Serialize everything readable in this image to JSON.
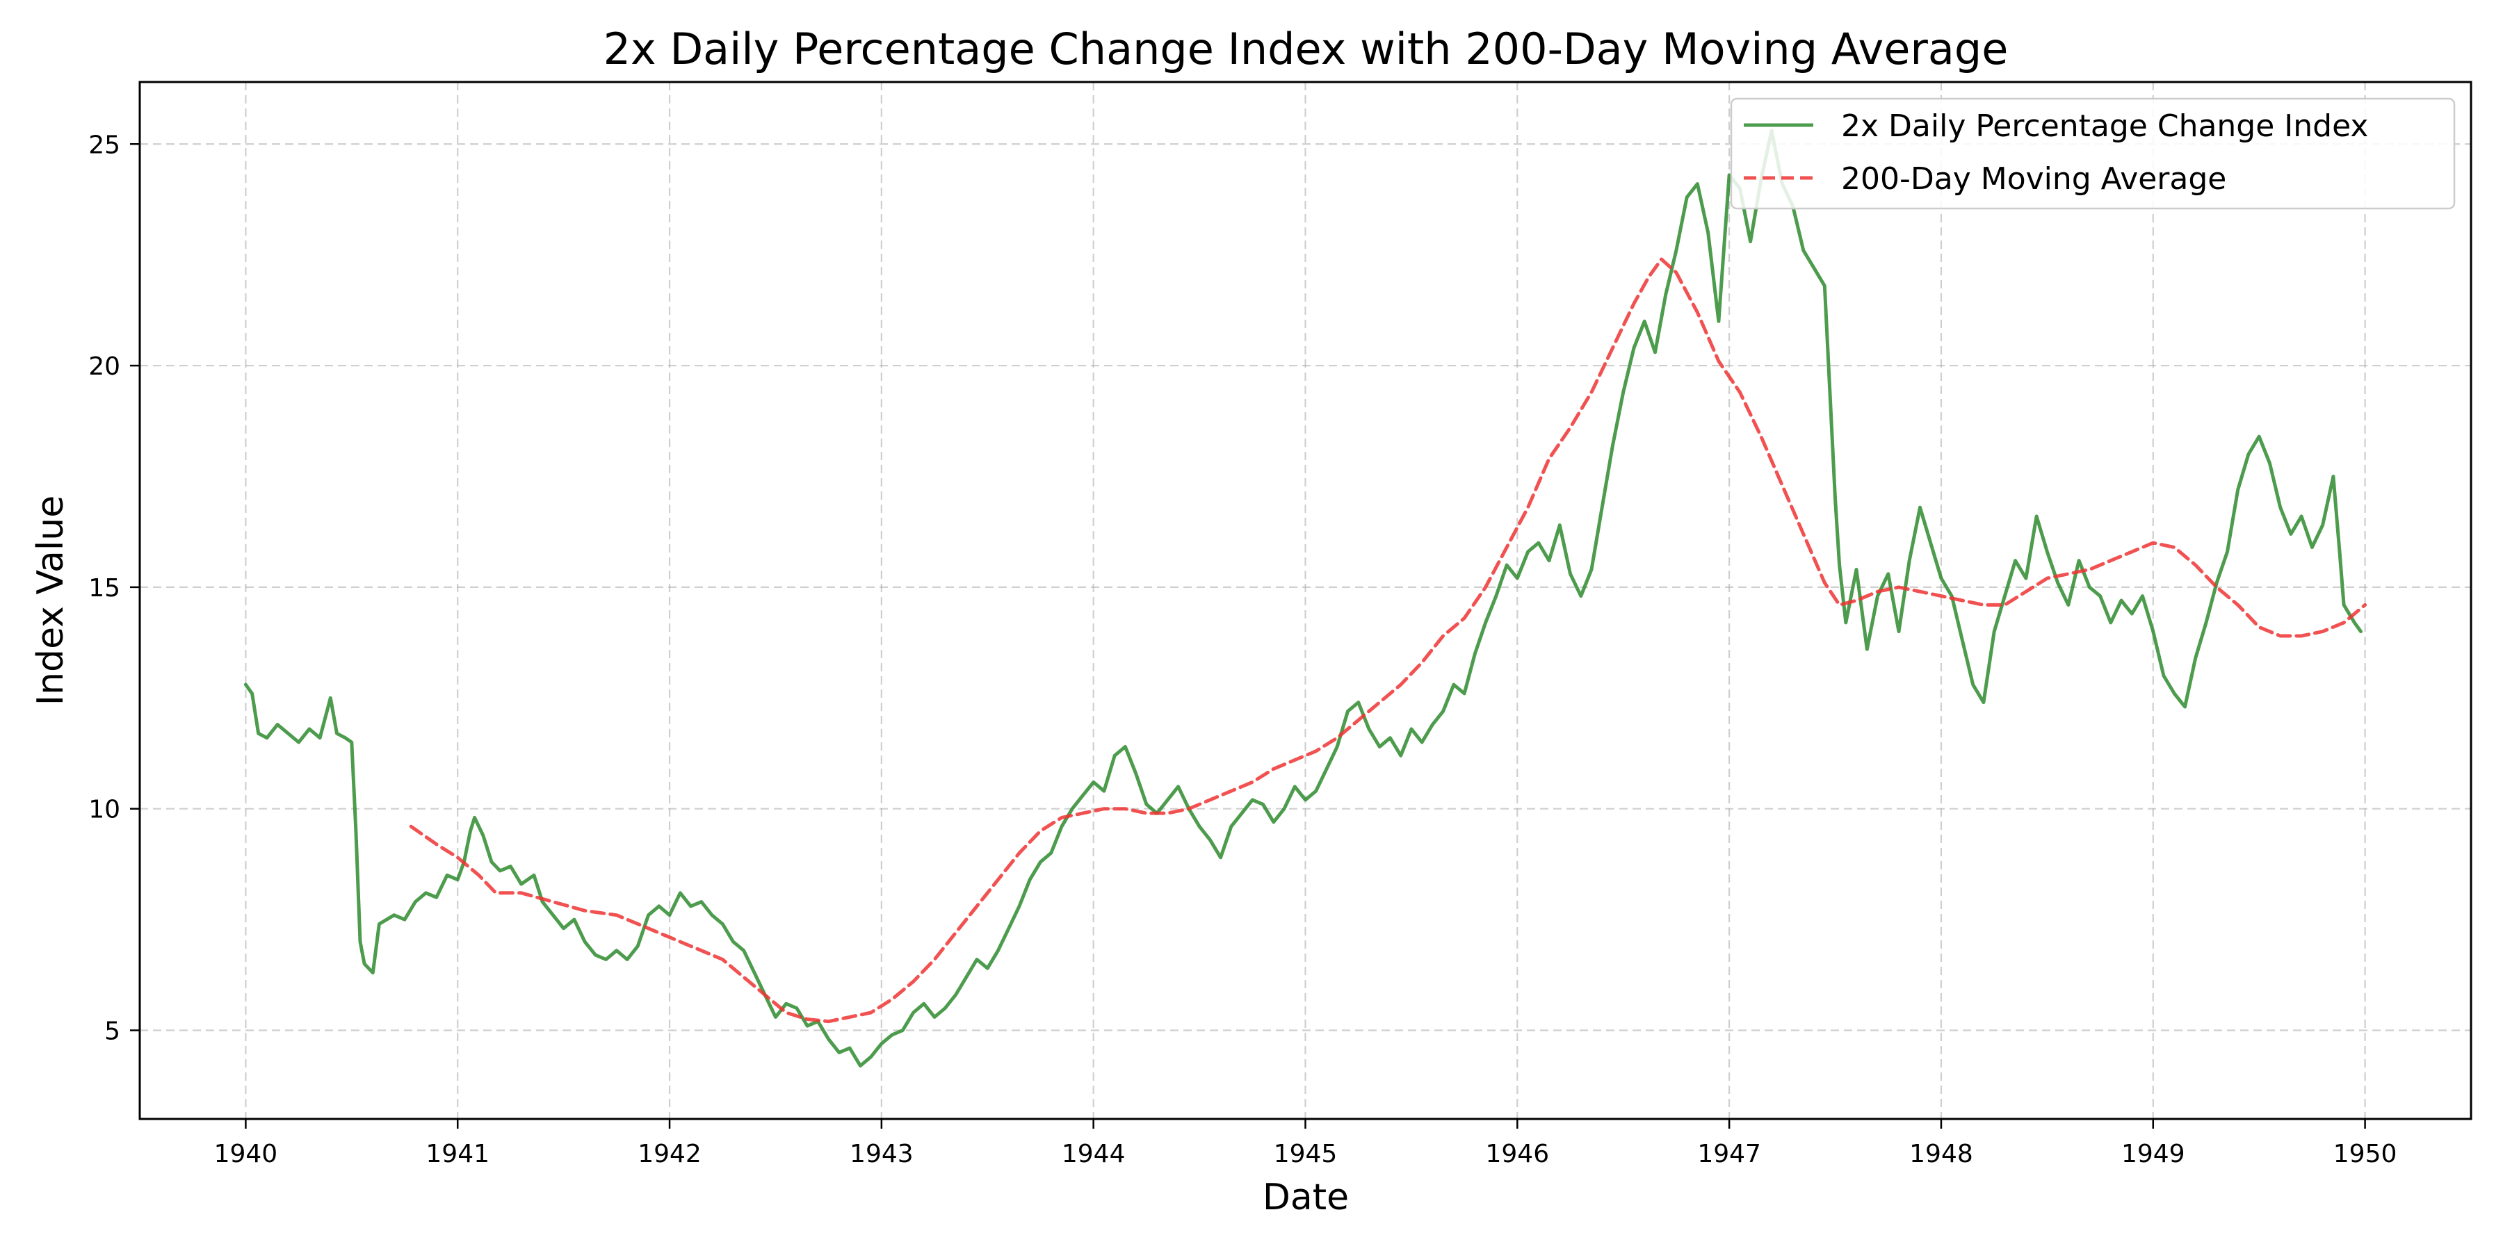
{
  "chart_data": {
    "type": "line",
    "title": "2x Daily Percentage Change Index with 200-Day Moving Average",
    "xlabel": "Date",
    "ylabel": "Index Value",
    "xlim": [
      1939.5,
      1950.5
    ],
    "ylim": [
      3,
      26.4
    ],
    "x_ticks": [
      1940,
      1941,
      1942,
      1943,
      1944,
      1945,
      1946,
      1947,
      1948,
      1949,
      1950
    ],
    "x_tick_labels": [
      "1940",
      "1941",
      "1942",
      "1943",
      "1944",
      "1945",
      "1946",
      "1947",
      "1948",
      "1949",
      "1950"
    ],
    "y_ticks": [
      5,
      10,
      15,
      20,
      25
    ],
    "y_tick_labels": [
      "5",
      "10",
      "15",
      "20",
      "25"
    ],
    "grid": true,
    "legend_position": "top-right",
    "series": [
      {
        "name": "2x Daily Percentage Change Index",
        "color": "#2e8b2e",
        "style": "solid",
        "points": [
          [
            1940.0,
            12.8
          ],
          [
            1940.03,
            12.6
          ],
          [
            1940.06,
            11.7
          ],
          [
            1940.1,
            11.6
          ],
          [
            1940.15,
            11.9
          ],
          [
            1940.2,
            11.7
          ],
          [
            1940.25,
            11.5
          ],
          [
            1940.3,
            11.8
          ],
          [
            1940.35,
            11.6
          ],
          [
            1940.4,
            12.5
          ],
          [
            1940.43,
            11.7
          ],
          [
            1940.47,
            11.6
          ],
          [
            1940.5,
            11.5
          ],
          [
            1940.52,
            9.5
          ],
          [
            1940.54,
            7.0
          ],
          [
            1940.56,
            6.5
          ],
          [
            1940.6,
            6.3
          ],
          [
            1940.63,
            7.4
          ],
          [
            1940.7,
            7.6
          ],
          [
            1940.75,
            7.5
          ],
          [
            1940.8,
            7.9
          ],
          [
            1940.85,
            8.1
          ],
          [
            1940.9,
            8.0
          ],
          [
            1940.95,
            8.5
          ],
          [
            1941.0,
            8.4
          ],
          [
            1941.03,
            8.8
          ],
          [
            1941.06,
            9.5
          ],
          [
            1941.08,
            9.8
          ],
          [
            1941.12,
            9.4
          ],
          [
            1941.16,
            8.8
          ],
          [
            1941.2,
            8.6
          ],
          [
            1941.25,
            8.7
          ],
          [
            1941.3,
            8.3
          ],
          [
            1941.36,
            8.5
          ],
          [
            1941.4,
            7.9
          ],
          [
            1941.45,
            7.6
          ],
          [
            1941.5,
            7.3
          ],
          [
            1941.55,
            7.5
          ],
          [
            1941.6,
            7.0
          ],
          [
            1941.65,
            6.7
          ],
          [
            1941.7,
            6.6
          ],
          [
            1941.75,
            6.8
          ],
          [
            1941.8,
            6.6
          ],
          [
            1941.85,
            6.9
          ],
          [
            1941.9,
            7.6
          ],
          [
            1941.95,
            7.8
          ],
          [
            1942.0,
            7.6
          ],
          [
            1942.05,
            8.1
          ],
          [
            1942.1,
            7.8
          ],
          [
            1942.15,
            7.9
          ],
          [
            1942.2,
            7.6
          ],
          [
            1942.25,
            7.4
          ],
          [
            1942.3,
            7.0
          ],
          [
            1942.35,
            6.8
          ],
          [
            1942.4,
            6.3
          ],
          [
            1942.45,
            5.8
          ],
          [
            1942.5,
            5.3
          ],
          [
            1942.55,
            5.6
          ],
          [
            1942.6,
            5.5
          ],
          [
            1942.65,
            5.1
          ],
          [
            1942.7,
            5.2
          ],
          [
            1942.75,
            4.8
          ],
          [
            1942.8,
            4.5
          ],
          [
            1942.85,
            4.6
          ],
          [
            1942.9,
            4.2
          ],
          [
            1942.95,
            4.4
          ],
          [
            1943.0,
            4.7
          ],
          [
            1943.05,
            4.9
          ],
          [
            1943.1,
            5.0
          ],
          [
            1943.15,
            5.4
          ],
          [
            1943.2,
            5.6
          ],
          [
            1943.25,
            5.3
          ],
          [
            1943.3,
            5.5
          ],
          [
            1943.35,
            5.8
          ],
          [
            1943.4,
            6.2
          ],
          [
            1943.45,
            6.6
          ],
          [
            1943.5,
            6.4
          ],
          [
            1943.55,
            6.8
          ],
          [
            1943.6,
            7.3
          ],
          [
            1943.65,
            7.8
          ],
          [
            1943.7,
            8.4
          ],
          [
            1943.75,
            8.8
          ],
          [
            1943.8,
            9.0
          ],
          [
            1943.85,
            9.6
          ],
          [
            1943.9,
            10.0
          ],
          [
            1943.95,
            10.3
          ],
          [
            1944.0,
            10.6
          ],
          [
            1944.05,
            10.4
          ],
          [
            1944.1,
            11.2
          ],
          [
            1944.15,
            11.4
          ],
          [
            1944.2,
            10.8
          ],
          [
            1944.25,
            10.1
          ],
          [
            1944.3,
            9.9
          ],
          [
            1944.35,
            10.2
          ],
          [
            1944.4,
            10.5
          ],
          [
            1944.45,
            10.0
          ],
          [
            1944.5,
            9.6
          ],
          [
            1944.55,
            9.3
          ],
          [
            1944.6,
            8.9
          ],
          [
            1944.65,
            9.6
          ],
          [
            1944.7,
            9.9
          ],
          [
            1944.75,
            10.2
          ],
          [
            1944.8,
            10.1
          ],
          [
            1944.85,
            9.7
          ],
          [
            1944.9,
            10.0
          ],
          [
            1944.95,
            10.5
          ],
          [
            1945.0,
            10.2
          ],
          [
            1945.05,
            10.4
          ],
          [
            1945.1,
            10.9
          ],
          [
            1945.15,
            11.4
          ],
          [
            1945.2,
            12.2
          ],
          [
            1945.25,
            12.4
          ],
          [
            1945.3,
            11.8
          ],
          [
            1945.35,
            11.4
          ],
          [
            1945.4,
            11.6
          ],
          [
            1945.45,
            11.2
          ],
          [
            1945.5,
            11.8
          ],
          [
            1945.55,
            11.5
          ],
          [
            1945.6,
            11.9
          ],
          [
            1945.65,
            12.2
          ],
          [
            1945.7,
            12.8
          ],
          [
            1945.75,
            12.6
          ],
          [
            1945.8,
            13.5
          ],
          [
            1945.85,
            14.2
          ],
          [
            1945.9,
            14.8
          ],
          [
            1945.95,
            15.5
          ],
          [
            1946.0,
            15.2
          ],
          [
            1946.05,
            15.8
          ],
          [
            1946.1,
            16.0
          ],
          [
            1946.15,
            15.6
          ],
          [
            1946.2,
            16.4
          ],
          [
            1946.25,
            15.3
          ],
          [
            1946.3,
            14.8
          ],
          [
            1946.35,
            15.4
          ],
          [
            1946.4,
            16.8
          ],
          [
            1946.45,
            18.2
          ],
          [
            1946.5,
            19.4
          ],
          [
            1946.55,
            20.4
          ],
          [
            1946.6,
            21.0
          ],
          [
            1946.65,
            20.3
          ],
          [
            1946.7,
            21.6
          ],
          [
            1946.75,
            22.6
          ],
          [
            1946.8,
            23.8
          ],
          [
            1946.85,
            24.1
          ],
          [
            1946.9,
            23.0
          ],
          [
            1946.95,
            21.0
          ],
          [
            1947.0,
            24.3
          ],
          [
            1947.05,
            24.0
          ],
          [
            1947.1,
            22.8
          ],
          [
            1947.15,
            24.2
          ],
          [
            1947.2,
            25.3
          ],
          [
            1947.25,
            24.1
          ],
          [
            1947.3,
            23.6
          ],
          [
            1947.35,
            22.6
          ],
          [
            1947.4,
            22.2
          ],
          [
            1947.45,
            21.8
          ],
          [
            1947.5,
            17.0
          ],
          [
            1947.52,
            15.5
          ],
          [
            1947.55,
            14.2
          ],
          [
            1947.6,
            15.4
          ],
          [
            1947.65,
            13.6
          ],
          [
            1947.7,
            14.8
          ],
          [
            1947.75,
            15.3
          ],
          [
            1947.8,
            14.0
          ],
          [
            1947.85,
            15.6
          ],
          [
            1947.9,
            16.8
          ],
          [
            1947.95,
            16.0
          ],
          [
            1948.0,
            15.2
          ],
          [
            1948.05,
            14.8
          ],
          [
            1948.1,
            13.8
          ],
          [
            1948.15,
            12.8
          ],
          [
            1948.2,
            12.4
          ],
          [
            1948.25,
            14.0
          ],
          [
            1948.3,
            14.8
          ],
          [
            1948.35,
            15.6
          ],
          [
            1948.4,
            15.2
          ],
          [
            1948.45,
            16.6
          ],
          [
            1948.5,
            15.8
          ],
          [
            1948.55,
            15.1
          ],
          [
            1948.6,
            14.6
          ],
          [
            1948.65,
            15.6
          ],
          [
            1948.7,
            15.0
          ],
          [
            1948.75,
            14.8
          ],
          [
            1948.8,
            14.2
          ],
          [
            1948.85,
            14.7
          ],
          [
            1948.9,
            14.4
          ],
          [
            1948.95,
            14.8
          ],
          [
            1949.0,
            14.0
          ],
          [
            1949.05,
            13.0
          ],
          [
            1949.1,
            12.6
          ],
          [
            1949.15,
            12.3
          ],
          [
            1949.2,
            13.4
          ],
          [
            1949.25,
            14.2
          ],
          [
            1949.3,
            15.1
          ],
          [
            1949.35,
            15.8
          ],
          [
            1949.4,
            17.2
          ],
          [
            1949.45,
            18.0
          ],
          [
            1949.5,
            18.4
          ],
          [
            1949.55,
            17.8
          ],
          [
            1949.6,
            16.8
          ],
          [
            1949.65,
            16.2
          ],
          [
            1949.7,
            16.6
          ],
          [
            1949.75,
            15.9
          ],
          [
            1949.8,
            16.4
          ],
          [
            1949.85,
            17.5
          ],
          [
            1949.88,
            15.8
          ],
          [
            1949.9,
            14.6
          ],
          [
            1949.95,
            14.2
          ],
          [
            1949.98,
            14.0
          ]
        ]
      },
      {
        "name": "200-Day Moving Average",
        "color": "#ee3333",
        "style": "dashed",
        "points": [
          [
            1940.78,
            9.6
          ],
          [
            1940.9,
            9.2
          ],
          [
            1941.0,
            8.9
          ],
          [
            1941.1,
            8.5
          ],
          [
            1941.18,
            8.1
          ],
          [
            1941.3,
            8.1
          ],
          [
            1941.45,
            7.9
          ],
          [
            1941.6,
            7.7
          ],
          [
            1941.75,
            7.6
          ],
          [
            1941.9,
            7.3
          ],
          [
            1942.05,
            7.0
          ],
          [
            1942.15,
            6.8
          ],
          [
            1942.25,
            6.6
          ],
          [
            1942.35,
            6.2
          ],
          [
            1942.45,
            5.8
          ],
          [
            1942.55,
            5.4
          ],
          [
            1942.65,
            5.25
          ],
          [
            1942.75,
            5.2
          ],
          [
            1942.85,
            5.3
          ],
          [
            1942.95,
            5.4
          ],
          [
            1943.05,
            5.7
          ],
          [
            1943.15,
            6.1
          ],
          [
            1943.25,
            6.6
          ],
          [
            1943.35,
            7.2
          ],
          [
            1943.45,
            7.8
          ],
          [
            1943.55,
            8.4
          ],
          [
            1943.65,
            9.0
          ],
          [
            1943.75,
            9.5
          ],
          [
            1943.85,
            9.8
          ],
          [
            1943.95,
            9.9
          ],
          [
            1944.05,
            10.0
          ],
          [
            1944.15,
            10.0
          ],
          [
            1944.25,
            9.9
          ],
          [
            1944.35,
            9.9
          ],
          [
            1944.45,
            10.0
          ],
          [
            1944.55,
            10.2
          ],
          [
            1944.65,
            10.4
          ],
          [
            1944.75,
            10.6
          ],
          [
            1944.85,
            10.9
          ],
          [
            1944.95,
            11.1
          ],
          [
            1945.05,
            11.3
          ],
          [
            1945.15,
            11.6
          ],
          [
            1945.25,
            12.0
          ],
          [
            1945.35,
            12.4
          ],
          [
            1945.45,
            12.8
          ],
          [
            1945.55,
            13.3
          ],
          [
            1945.65,
            13.9
          ],
          [
            1945.75,
            14.3
          ],
          [
            1945.85,
            15.0
          ],
          [
            1945.95,
            15.9
          ],
          [
            1946.05,
            16.8
          ],
          [
            1946.15,
            17.9
          ],
          [
            1946.25,
            18.6
          ],
          [
            1946.35,
            19.4
          ],
          [
            1946.45,
            20.4
          ],
          [
            1946.55,
            21.4
          ],
          [
            1946.62,
            22.0
          ],
          [
            1946.68,
            22.4
          ],
          [
            1946.75,
            22.1
          ],
          [
            1946.85,
            21.2
          ],
          [
            1946.95,
            20.1
          ],
          [
            1947.05,
            19.4
          ],
          [
            1947.15,
            18.4
          ],
          [
            1947.25,
            17.3
          ],
          [
            1947.35,
            16.2
          ],
          [
            1947.45,
            15.1
          ],
          [
            1947.52,
            14.6
          ],
          [
            1947.6,
            14.7
          ],
          [
            1947.7,
            14.9
          ],
          [
            1947.8,
            15.0
          ],
          [
            1947.9,
            14.9
          ],
          [
            1948.0,
            14.8
          ],
          [
            1948.1,
            14.7
          ],
          [
            1948.2,
            14.6
          ],
          [
            1948.3,
            14.6
          ],
          [
            1948.4,
            14.9
          ],
          [
            1948.5,
            15.2
          ],
          [
            1948.6,
            15.3
          ],
          [
            1948.7,
            15.4
          ],
          [
            1948.8,
            15.6
          ],
          [
            1948.9,
            15.8
          ],
          [
            1949.0,
            16.0
          ],
          [
            1949.1,
            15.9
          ],
          [
            1949.2,
            15.5
          ],
          [
            1949.3,
            15.0
          ],
          [
            1949.4,
            14.6
          ],
          [
            1949.5,
            14.1
          ],
          [
            1949.6,
            13.9
          ],
          [
            1949.7,
            13.9
          ],
          [
            1949.8,
            14.0
          ],
          [
            1949.9,
            14.2
          ],
          [
            1950.0,
            14.6
          ]
        ]
      }
    ]
  }
}
